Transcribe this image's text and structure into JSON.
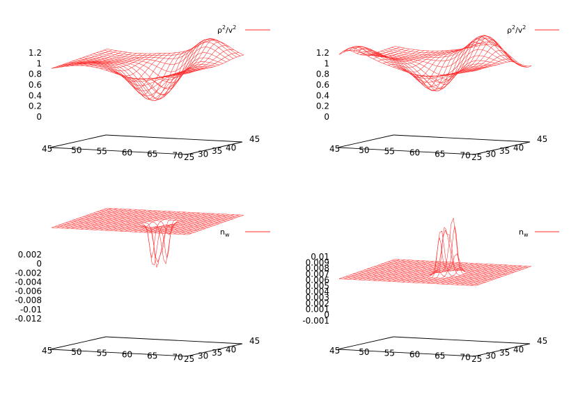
{
  "figure": {
    "panels": 4,
    "layout": "2x2 grid",
    "mesh_color": "#ff2a2a",
    "axis_color": "#000000"
  },
  "chart_data": [
    {
      "type": "surface",
      "legend": "ρ²/v²",
      "x_ticks": [
        "45",
        "50",
        "55",
        "60",
        "65",
        "70"
      ],
      "y_ticks": [
        "25",
        "30",
        "35",
        "40",
        "45"
      ],
      "z_ticks": [
        "0",
        "0.2",
        "0.4",
        "0.6",
        "0.8",
        "1",
        "1.2"
      ],
      "xlim": [
        45,
        72
      ],
      "ylim": [
        25,
        45
      ],
      "zlim": [
        0,
        1.2
      ],
      "surface": {
        "base": 0.7,
        "features": [
          {
            "x": 60,
            "y": 33,
            "amp": -0.55
          },
          {
            "x": 62,
            "y": 38,
            "amp": -0.4
          },
          {
            "x": 66,
            "y": 42,
            "amp": 0.35
          }
        ]
      }
    },
    {
      "type": "surface",
      "legend": "ρ²/v²",
      "x_ticks": [
        "45",
        "50",
        "55",
        "60",
        "65",
        "70"
      ],
      "y_ticks": [
        "25",
        "30",
        "35",
        "40",
        "45"
      ],
      "z_ticks": [
        "0",
        "0.2",
        "0.4",
        "0.6",
        "0.8",
        "1",
        "1.2"
      ],
      "xlim": [
        45,
        72
      ],
      "ylim": [
        25,
        45
      ],
      "zlim": [
        0,
        1.2
      ],
      "surface": {
        "base": 0.75,
        "features": [
          {
            "x": 47,
            "y": 27,
            "amp": 0.3
          },
          {
            "x": 60,
            "y": 33,
            "amp": -0.55
          },
          {
            "x": 66,
            "y": 40,
            "amp": 0.4
          },
          {
            "x": 70,
            "y": 44,
            "amp": -0.3
          }
        ]
      }
    },
    {
      "type": "surface",
      "legend": "n_w",
      "x_ticks": [
        "45",
        "50",
        "55",
        "60",
        "65",
        "70"
      ],
      "y_ticks": [
        "25",
        "30",
        "35",
        "40",
        "45"
      ],
      "z_ticks": [
        "0.002",
        "0",
        "-0.002",
        "-0.004",
        "-0.006",
        "-0.008",
        "-0.01",
        "-0.012"
      ],
      "xlim": [
        45,
        72
      ],
      "ylim": [
        25,
        45
      ],
      "zlim": [
        -0.012,
        0.002
      ],
      "surface": {
        "base": 0.0,
        "features": [
          {
            "x": 61,
            "y": 33,
            "amp": -0.011
          },
          {
            "x": 62,
            "y": 35,
            "amp": -0.009
          }
        ]
      }
    },
    {
      "type": "surface",
      "legend": "n_w",
      "x_ticks": [
        "45",
        "50",
        "55",
        "60",
        "65",
        "70"
      ],
      "y_ticks": [
        "25",
        "30",
        "35",
        "40",
        "45"
      ],
      "z_ticks": [
        "0.01",
        "0.009",
        "0.008",
        "0.007",
        "0.006",
        "0.005",
        "0.004",
        "0.003",
        "0.002",
        "0.001",
        "0",
        "-0.001"
      ],
      "xlim": [
        45,
        72
      ],
      "ylim": [
        25,
        45
      ],
      "zlim": [
        -0.001,
        0.01
      ],
      "surface": {
        "base": 0.0,
        "features": [
          {
            "x": 61,
            "y": 33,
            "amp": 0.0095
          },
          {
            "x": 62,
            "y": 35,
            "amp": 0.0095
          }
        ]
      }
    }
  ]
}
